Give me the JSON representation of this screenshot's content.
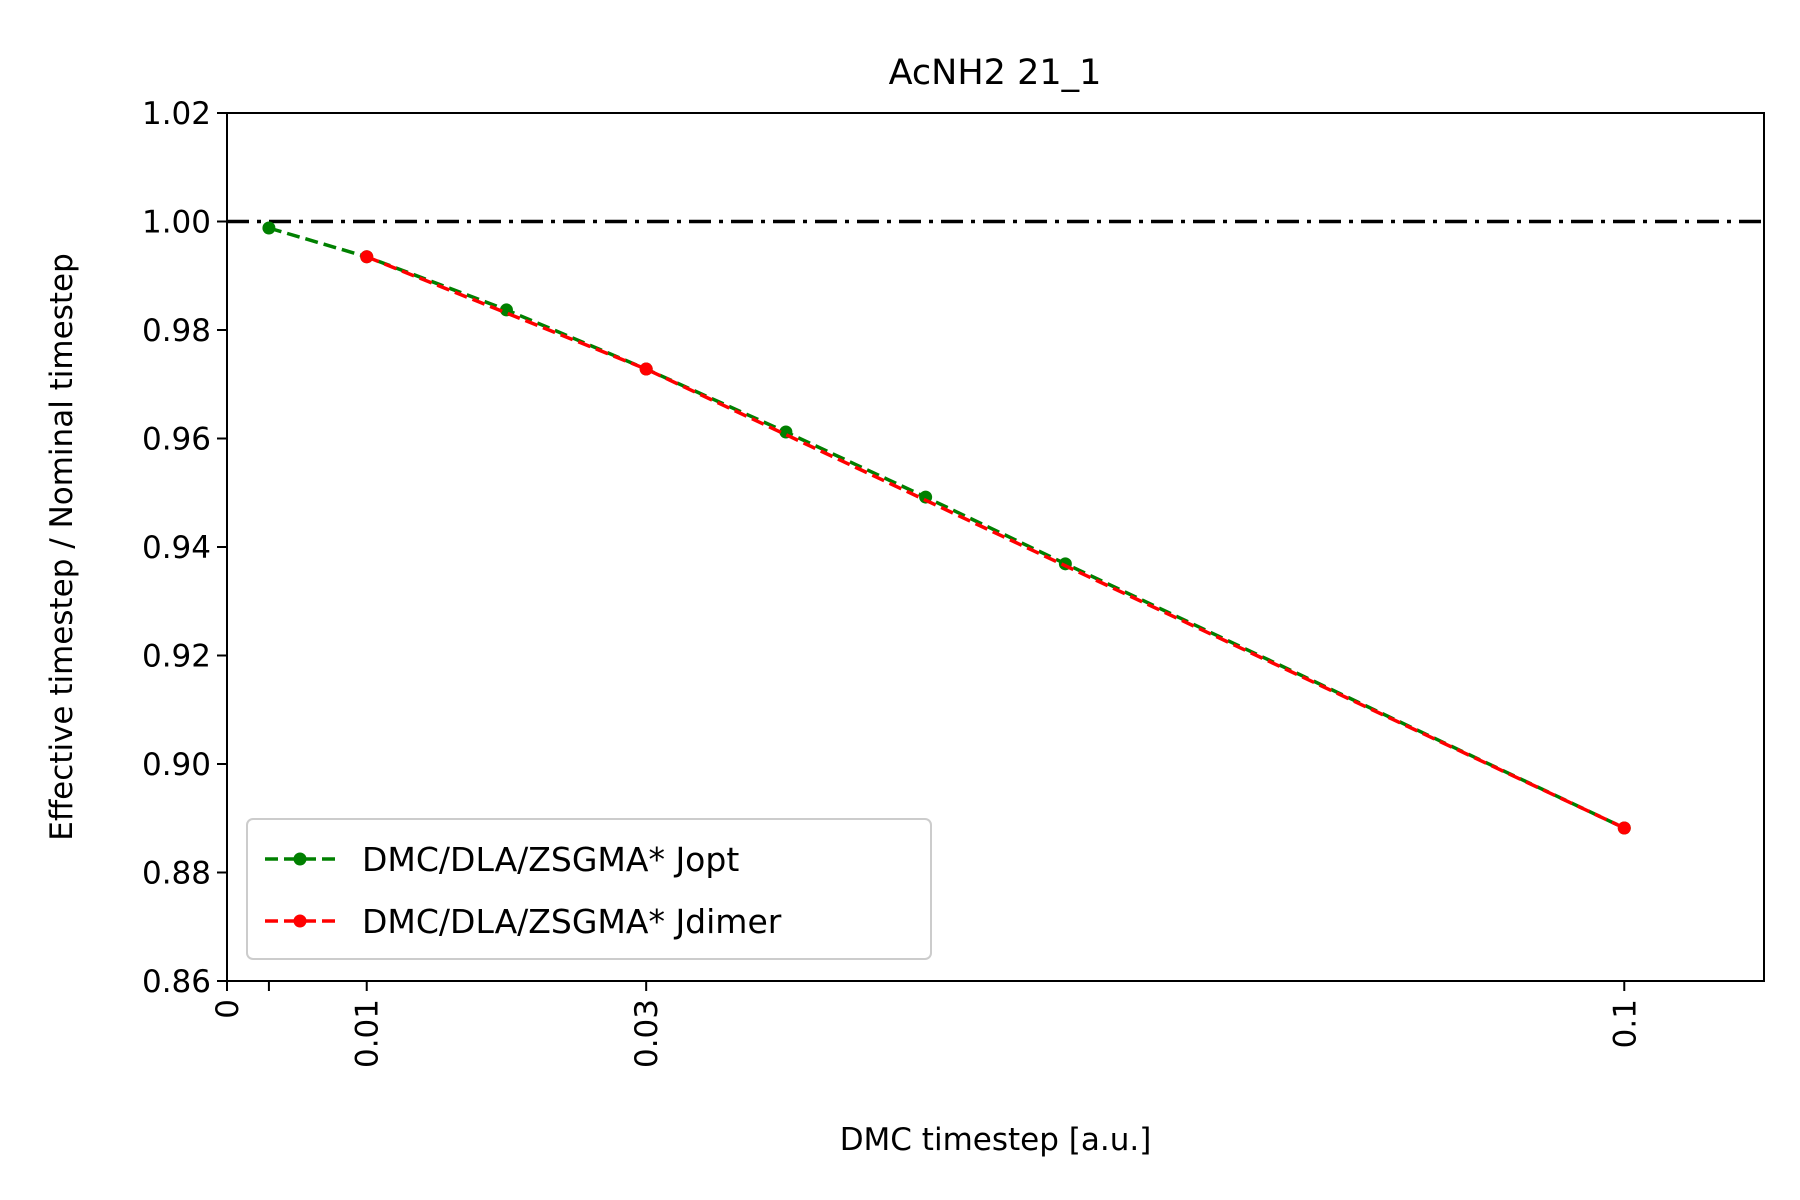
{
  "chart_data": {
    "type": "line",
    "title": "AcNH2 21_1",
    "xlabel": "DMC timestep [a.u.]",
    "ylabel": "Effective timestep / Nominal timestep",
    "xlim": [
      0,
      0.11
    ],
    "ylim": [
      0.86,
      1.02
    ],
    "x_ticks": [
      0,
      0.01,
      0.03,
      0.1
    ],
    "x_tick_labels": [
      "0",
      "0.01",
      "0.03",
      "0.1"
    ],
    "y_ticks": [
      0.86,
      0.88,
      0.9,
      0.92,
      0.94,
      0.96,
      0.98,
      1.0,
      1.02
    ],
    "y_tick_labels": [
      "0.86",
      "0.88",
      "0.90",
      "0.92",
      "0.94",
      "0.96",
      "0.98",
      "1.00",
      "1.02"
    ],
    "reference_line": {
      "y": 1.0,
      "style": "dashdot",
      "color": "#000000"
    },
    "legend_position": "lower-left",
    "grid": false,
    "series": [
      {
        "name": "DMC/DLA/ZSGMA* Jopt",
        "color": "#008000",
        "line_style": "dashed",
        "x": [
          0.003,
          0.01,
          0.02,
          0.03,
          0.04,
          0.05,
          0.06,
          0.1
        ],
        "y": [
          0.9988,
          0.9935,
          0.9837,
          0.9728,
          0.9612,
          0.9492,
          0.9369,
          0.8882
        ]
      },
      {
        "name": "DMC/DLA/ZSGMA* Jdimer",
        "color": "#ff0000",
        "line_style": "dashed",
        "x": [
          0.01,
          0.03,
          0.1
        ],
        "y": [
          0.9935,
          0.9728,
          0.8882
        ]
      }
    ]
  }
}
